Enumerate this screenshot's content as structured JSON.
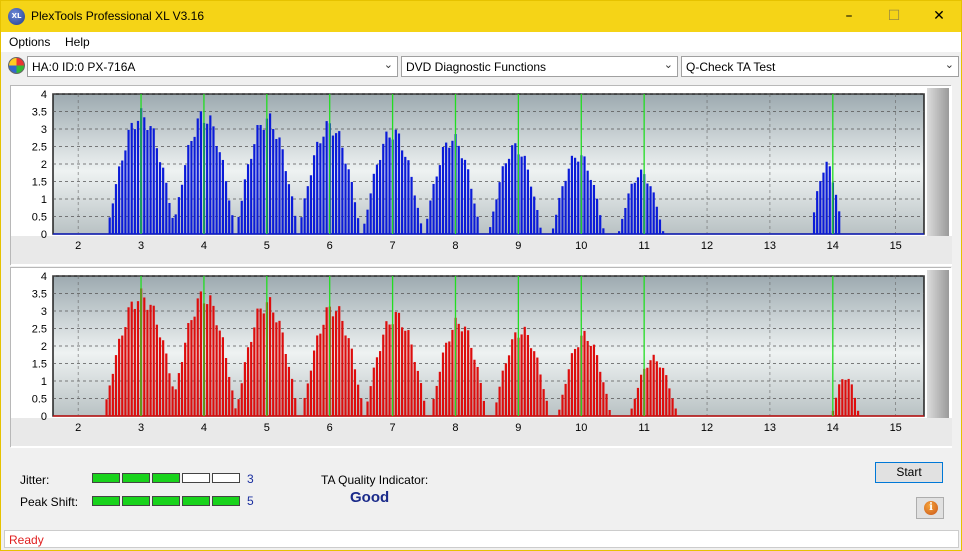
{
  "window": {
    "title": "PlexTools Professional XL V3.16",
    "icon_text": "XL"
  },
  "window_controls": {
    "minimize": "–",
    "maximize": "☐",
    "close": "✕"
  },
  "menu": {
    "options": "Options",
    "help": "Help"
  },
  "toolbar": {
    "drive_value": "HA:0 ID:0  PX-716A",
    "function_value": "DVD Diagnostic Functions",
    "test_value": "Q-Check TA Test",
    "combo_arrow": "⌵"
  },
  "icons": {
    "app": "xl-logo-icon",
    "drive": "disc-icon",
    "info": "info-icon",
    "dropdown": "chevron-down-icon"
  },
  "colors": {
    "top_bars": "#0b1bd8",
    "bottom_bars": "#dd0d0d",
    "marker_lines": "#22dd22",
    "title_bar": "#f5d417",
    "meter_on": "#19d31c"
  },
  "chart_data": [
    {
      "type": "bar",
      "series_color": "#0b1bd8",
      "x_ticks": [
        "2",
        "3",
        "4",
        "5",
        "6",
        "7",
        "8",
        "9",
        "10",
        "11",
        "12",
        "13",
        "14",
        "15"
      ],
      "y_ticks": [
        "0",
        "0.5",
        "1",
        "1.5",
        "2",
        "2.5",
        "3",
        "3.5",
        "4"
      ],
      "ylim": [
        0,
        4
      ],
      "xlim": [
        1.6,
        15.45
      ],
      "markers": [
        3,
        4,
        5,
        6,
        7,
        8,
        9,
        10,
        11,
        14
      ],
      "grid": true,
      "peaks": [
        {
          "center": 3.0,
          "height": 3.6,
          "half_width": 0.55
        },
        {
          "center": 4.0,
          "height": 3.6,
          "half_width": 0.5
        },
        {
          "center": 5.0,
          "height": 3.5,
          "half_width": 0.5
        },
        {
          "center": 6.0,
          "height": 3.3,
          "half_width": 0.5
        },
        {
          "center": 7.0,
          "height": 3.1,
          "half_width": 0.48
        },
        {
          "center": 7.95,
          "height": 2.9,
          "half_width": 0.45
        },
        {
          "center": 8.95,
          "height": 2.65,
          "half_width": 0.42
        },
        {
          "center": 9.95,
          "height": 2.4,
          "half_width": 0.42
        },
        {
          "center": 10.95,
          "height": 1.85,
          "half_width": 0.36
        },
        {
          "center": 13.9,
          "height": 2.1,
          "half_width": 0.25
        }
      ]
    },
    {
      "type": "bar",
      "series_color": "#dd0d0d",
      "x_ticks": [
        "2",
        "3",
        "4",
        "5",
        "6",
        "7",
        "8",
        "9",
        "10",
        "11",
        "12",
        "13",
        "14",
        "15"
      ],
      "y_ticks": [
        "0",
        "0.5",
        "1",
        "1.5",
        "2",
        "2.5",
        "3",
        "3.5",
        "4"
      ],
      "ylim": [
        0,
        4
      ],
      "xlim": [
        1.6,
        15.45
      ],
      "markers": [
        3,
        4,
        5,
        6,
        7,
        8,
        9,
        10,
        11,
        14
      ],
      "grid": true,
      "peaks": [
        {
          "center": 3.0,
          "height": 3.65,
          "half_width": 0.6
        },
        {
          "center": 4.0,
          "height": 3.65,
          "half_width": 0.52
        },
        {
          "center": 5.0,
          "height": 3.45,
          "half_width": 0.5
        },
        {
          "center": 6.05,
          "height": 3.3,
          "half_width": 0.5
        },
        {
          "center": 7.05,
          "height": 3.05,
          "half_width": 0.5
        },
        {
          "center": 8.05,
          "height": 2.85,
          "half_width": 0.45
        },
        {
          "center": 9.05,
          "height": 2.6,
          "half_width": 0.45
        },
        {
          "center": 10.05,
          "height": 2.45,
          "half_width": 0.42
        },
        {
          "center": 11.15,
          "height": 1.75,
          "half_width": 0.38
        },
        {
          "center": 14.2,
          "height": 1.2,
          "half_width": 0.22
        }
      ]
    }
  ],
  "metrics": {
    "jitter_label": "Jitter:",
    "jitter_value": "3",
    "jitter_level": 3,
    "peak_shift_label": "Peak Shift:",
    "peak_shift_value": "5",
    "peak_shift_level": 5,
    "segments_total": 5,
    "ta_quality_label": "TA Quality Indicator:",
    "ta_quality_value": "Good"
  },
  "buttons": {
    "start": "Start",
    "info": "i"
  },
  "status": {
    "text": "Ready"
  }
}
